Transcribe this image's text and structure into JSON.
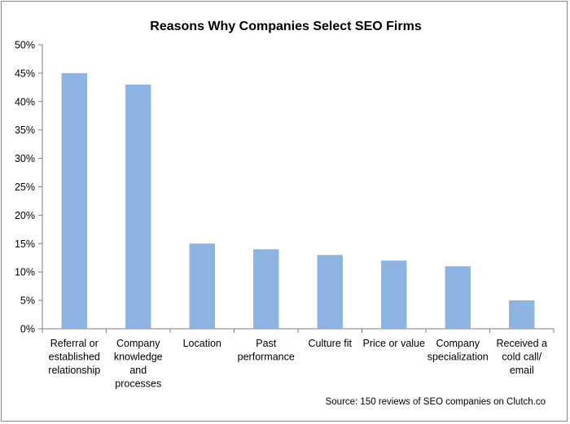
{
  "chart_data": {
    "type": "bar",
    "title": "Reasons Why Companies Select SEO Firms",
    "categories": [
      [
        "Referral or",
        "established",
        "relationship"
      ],
      [
        "Company",
        "knowledge",
        "and",
        "processes"
      ],
      [
        "Location"
      ],
      [
        "Past",
        "performance"
      ],
      [
        "Culture fit"
      ],
      [
        "Price or value"
      ],
      [
        "Company",
        "specialization"
      ],
      [
        "Received a",
        "cold call/",
        "email"
      ]
    ],
    "values": [
      45,
      43,
      15,
      14,
      13,
      12,
      11,
      5
    ],
    "ylim": [
      0,
      50
    ],
    "yticks": [
      "0%",
      "5%",
      "10%",
      "15%",
      "20%",
      "25%",
      "30%",
      "35%",
      "40%",
      "45%",
      "50%"
    ],
    "grid": false,
    "bar_color": "#8db3e2",
    "source": "Source: 150 reviews of SEO companies on Clutch.co"
  }
}
